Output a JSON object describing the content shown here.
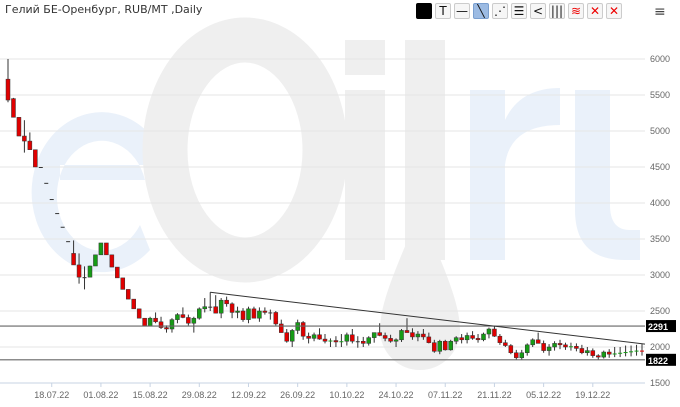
{
  "header": {
    "title": "Гелий БЕ-Оренбург, RUB/MT ,Daily"
  },
  "toolbar": {
    "buttons": [
      {
        "name": "color-button",
        "icon": "black-square",
        "label": ""
      },
      {
        "name": "text-tool",
        "icon": "T",
        "label": "T"
      },
      {
        "name": "horizontal-line-tool",
        "icon": "horizontal-line",
        "label": "—"
      },
      {
        "name": "trend-line-tool",
        "icon": "diagonal-line",
        "label": "╲",
        "active": true
      },
      {
        "name": "parallel-channel-tool",
        "icon": "parallel-lines",
        "label": "⋰"
      },
      {
        "name": "fibonacci-tool",
        "icon": "lines",
        "label": "☰"
      },
      {
        "name": "fan-tool",
        "icon": "fan",
        "label": "<"
      },
      {
        "name": "vertical-lines-tool",
        "icon": "vertical-lines",
        "label": "|||"
      },
      {
        "name": "layers-tool",
        "icon": "red-stack",
        "label": "≋"
      },
      {
        "name": "delete-tool",
        "icon": "small-x",
        "label": "✕"
      },
      {
        "name": "delete-all-tool",
        "icon": "big-x",
        "label": "✕"
      }
    ],
    "menu": "≡"
  },
  "watermark": {
    "text": "eOil.ru",
    "color_blue": "#eaf1fa",
    "color_grey": "#efefef"
  },
  "colors": {
    "up": "#169b16",
    "down": "#e00000",
    "grid": "#e6e6e6",
    "level": "#666666",
    "trend": "#333333"
  },
  "chart_data": {
    "type": "candlestick",
    "ylim": [
      1500,
      6200
    ],
    "y_ticks": [
      1500,
      2000,
      2500,
      3000,
      3500,
      4000,
      4500,
      5000,
      5500,
      6000
    ],
    "x_ticks": [
      "18.07.22",
      "01.08.22",
      "15.08.22",
      "29.08.22",
      "12.09.22",
      "26.09.22",
      "10.10.22",
      "24.10.22",
      "07.11.22",
      "21.11.22",
      "05.12.22",
      "19.12.22"
    ],
    "x_tick_candle_index": [
      8,
      17,
      26,
      35,
      44,
      53,
      62,
      71,
      80,
      89,
      98,
      107
    ],
    "candles_ohlc": [
      [
        5720,
        6000,
        5400,
        5430
      ],
      [
        5450,
        5460,
        5190,
        5190
      ],
      [
        5190,
        5190,
        4930,
        4930
      ],
      [
        4930,
        5150,
        4700,
        4860
      ],
      [
        4860,
        4980,
        4750,
        4740
      ],
      [
        4740,
        4740,
        4500,
        4500
      ],
      [
        4500,
        4500,
        4500,
        4500
      ],
      [
        4280,
        4280,
        4280,
        4280
      ],
      [
        4055,
        4055,
        4055,
        4055
      ],
      [
        3860,
        3860,
        3860,
        3860
      ],
      [
        3670,
        3670,
        3670,
        3670
      ],
      [
        3470,
        3470,
        3470,
        3470
      ],
      [
        3300,
        3480,
        3140,
        3140
      ],
      [
        3140,
        3300,
        2880,
        2970
      ],
      [
        2970,
        3120,
        2800,
        2970
      ],
      [
        2970,
        3130,
        2970,
        3125
      ],
      [
        3125,
        3280,
        3125,
        3280
      ],
      [
        3280,
        3445,
        3280,
        3445
      ],
      [
        3445,
        3445,
        3280,
        3280
      ],
      [
        3280,
        3280,
        3110,
        3110
      ],
      [
        3110,
        3110,
        2960,
        2960
      ],
      [
        2960,
        2960,
        2800,
        2800
      ],
      [
        2800,
        2800,
        2665,
        2665
      ],
      [
        2665,
        2665,
        2530,
        2530
      ],
      [
        2530,
        2530,
        2400,
        2400
      ],
      [
        2400,
        2400,
        2290,
        2290
      ],
      [
        2290,
        2420,
        2290,
        2400
      ],
      [
        2400,
        2480,
        2330,
        2350
      ],
      [
        2350,
        2420,
        2250,
        2270
      ],
      [
        2270,
        2300,
        2200,
        2250
      ],
      [
        2250,
        2400,
        2200,
        2380
      ],
      [
        2380,
        2470,
        2330,
        2450
      ],
      [
        2450,
        2550,
        2400,
        2410
      ],
      [
        2410,
        2450,
        2300,
        2330
      ],
      [
        2330,
        2420,
        2200,
        2400
      ],
      [
        2400,
        2550,
        2380,
        2530
      ],
      [
        2530,
        2680,
        2480,
        2560
      ],
      [
        2560,
        2760,
        2500,
        2560
      ],
      [
        2560,
        2720,
        2470,
        2470
      ],
      [
        2470,
        2680,
        2400,
        2650
      ],
      [
        2650,
        2700,
        2560,
        2600
      ],
      [
        2600,
        2620,
        2400,
        2480
      ],
      [
        2480,
        2560,
        2400,
        2500
      ],
      [
        2500,
        2540,
        2350,
        2380
      ],
      [
        2380,
        2560,
        2330,
        2530
      ],
      [
        2530,
        2560,
        2400,
        2400
      ],
      [
        2400,
        2550,
        2350,
        2500
      ],
      [
        2500,
        2550,
        2450,
        2480
      ],
      [
        2480,
        2520,
        2380,
        2480
      ],
      [
        2480,
        2500,
        2300,
        2320
      ],
      [
        2320,
        2380,
        2200,
        2200
      ],
      [
        2200,
        2250,
        2060,
        2080
      ],
      [
        2080,
        2250,
        2000,
        2230
      ],
      [
        2230,
        2380,
        2180,
        2340
      ],
      [
        2340,
        2360,
        2100,
        2150
      ],
      [
        2150,
        2200,
        2050,
        2120
      ],
      [
        2120,
        2200,
        2080,
        2170
      ],
      [
        2170,
        2260,
        2100,
        2110
      ],
      [
        2110,
        2180,
        2050,
        2080
      ],
      [
        2080,
        2120,
        2000,
        2090
      ],
      [
        2090,
        2150,
        2000,
        2070
      ],
      [
        2070,
        2180,
        2000,
        2080
      ],
      [
        2080,
        2200,
        2020,
        2170
      ],
      [
        2170,
        2250,
        2050,
        2080
      ],
      [
        2080,
        2150,
        1990,
        2080
      ],
      [
        2080,
        2140,
        2000,
        2050
      ],
      [
        2050,
        2150,
        2020,
        2130
      ],
      [
        2130,
        2200,
        2060,
        2200
      ],
      [
        2200,
        2330,
        2150,
        2160
      ],
      [
        2160,
        2200,
        2080,
        2120
      ],
      [
        2120,
        2170,
        2060,
        2080
      ],
      [
        2080,
        2120,
        2000,
        2100
      ],
      [
        2100,
        2250,
        2070,
        2230
      ],
      [
        2230,
        2400,
        2200,
        2200
      ],
      [
        2200,
        2260,
        2100,
        2140
      ],
      [
        2140,
        2220,
        2080,
        2180
      ],
      [
        2180,
        2250,
        2100,
        2140
      ],
      [
        2140,
        2200,
        2050,
        2060
      ],
      [
        2060,
        2100,
        1920,
        1940
      ],
      [
        1940,
        2100,
        1900,
        2080
      ],
      [
        2080,
        2100,
        1950,
        1960
      ],
      [
        1960,
        2100,
        1950,
        2080
      ],
      [
        2080,
        2150,
        2040,
        2130
      ],
      [
        2130,
        2180,
        2050,
        2100
      ],
      [
        2100,
        2200,
        2050,
        2160
      ],
      [
        2160,
        2220,
        2100,
        2120
      ],
      [
        2120,
        2180,
        2060,
        2100
      ],
      [
        2100,
        2200,
        2080,
        2180
      ],
      [
        2180,
        2270,
        2120,
        2250
      ],
      [
        2250,
        2290,
        2140,
        2150
      ],
      [
        2150,
        2180,
        2030,
        2060
      ],
      [
        2060,
        2100,
        2000,
        2020
      ],
      [
        2020,
        2040,
        1900,
        1920
      ],
      [
        1920,
        1960,
        1820,
        1850
      ],
      [
        1850,
        1960,
        1820,
        1920
      ],
      [
        1920,
        2050,
        1880,
        2030
      ],
      [
        2030,
        2120,
        2000,
        2100
      ],
      [
        2100,
        2200,
        2050,
        2050
      ],
      [
        2050,
        2090,
        1920,
        1950
      ],
      [
        1950,
        2040,
        1880,
        2000
      ],
      [
        2000,
        2080,
        1950,
        2050
      ],
      [
        2050,
        2100,
        1970,
        2030
      ],
      [
        2030,
        2060,
        1960,
        2000
      ],
      [
        2000,
        2060,
        1950,
        2010
      ],
      [
        2010,
        2050,
        1940,
        1980
      ],
      [
        1980,
        2030,
        1900,
        1920
      ],
      [
        1920,
        2000,
        1880,
        1950
      ],
      [
        1950,
        1980,
        1850,
        1880
      ],
      [
        1880,
        1900,
        1820,
        1860
      ],
      [
        1860,
        1950,
        1840,
        1930
      ],
      [
        1930,
        1970,
        1850,
        1900
      ],
      [
        1900,
        2000,
        1860,
        1910
      ],
      [
        1910,
        2000,
        1860,
        1920
      ],
      [
        1920,
        2020,
        1870,
        1930
      ],
      [
        1930,
        2020,
        1870,
        1940
      ],
      [
        1940,
        2030,
        1880,
        1950
      ],
      [
        1950,
        2040,
        1880,
        1940
      ]
    ],
    "horizontal_levels": [
      2291,
      1822
    ],
    "trend_line": {
      "from": {
        "candle_index": 37,
        "value": 2760
      },
      "to": {
        "candle_index": 116,
        "value": 2040
      }
    },
    "grid": true
  }
}
